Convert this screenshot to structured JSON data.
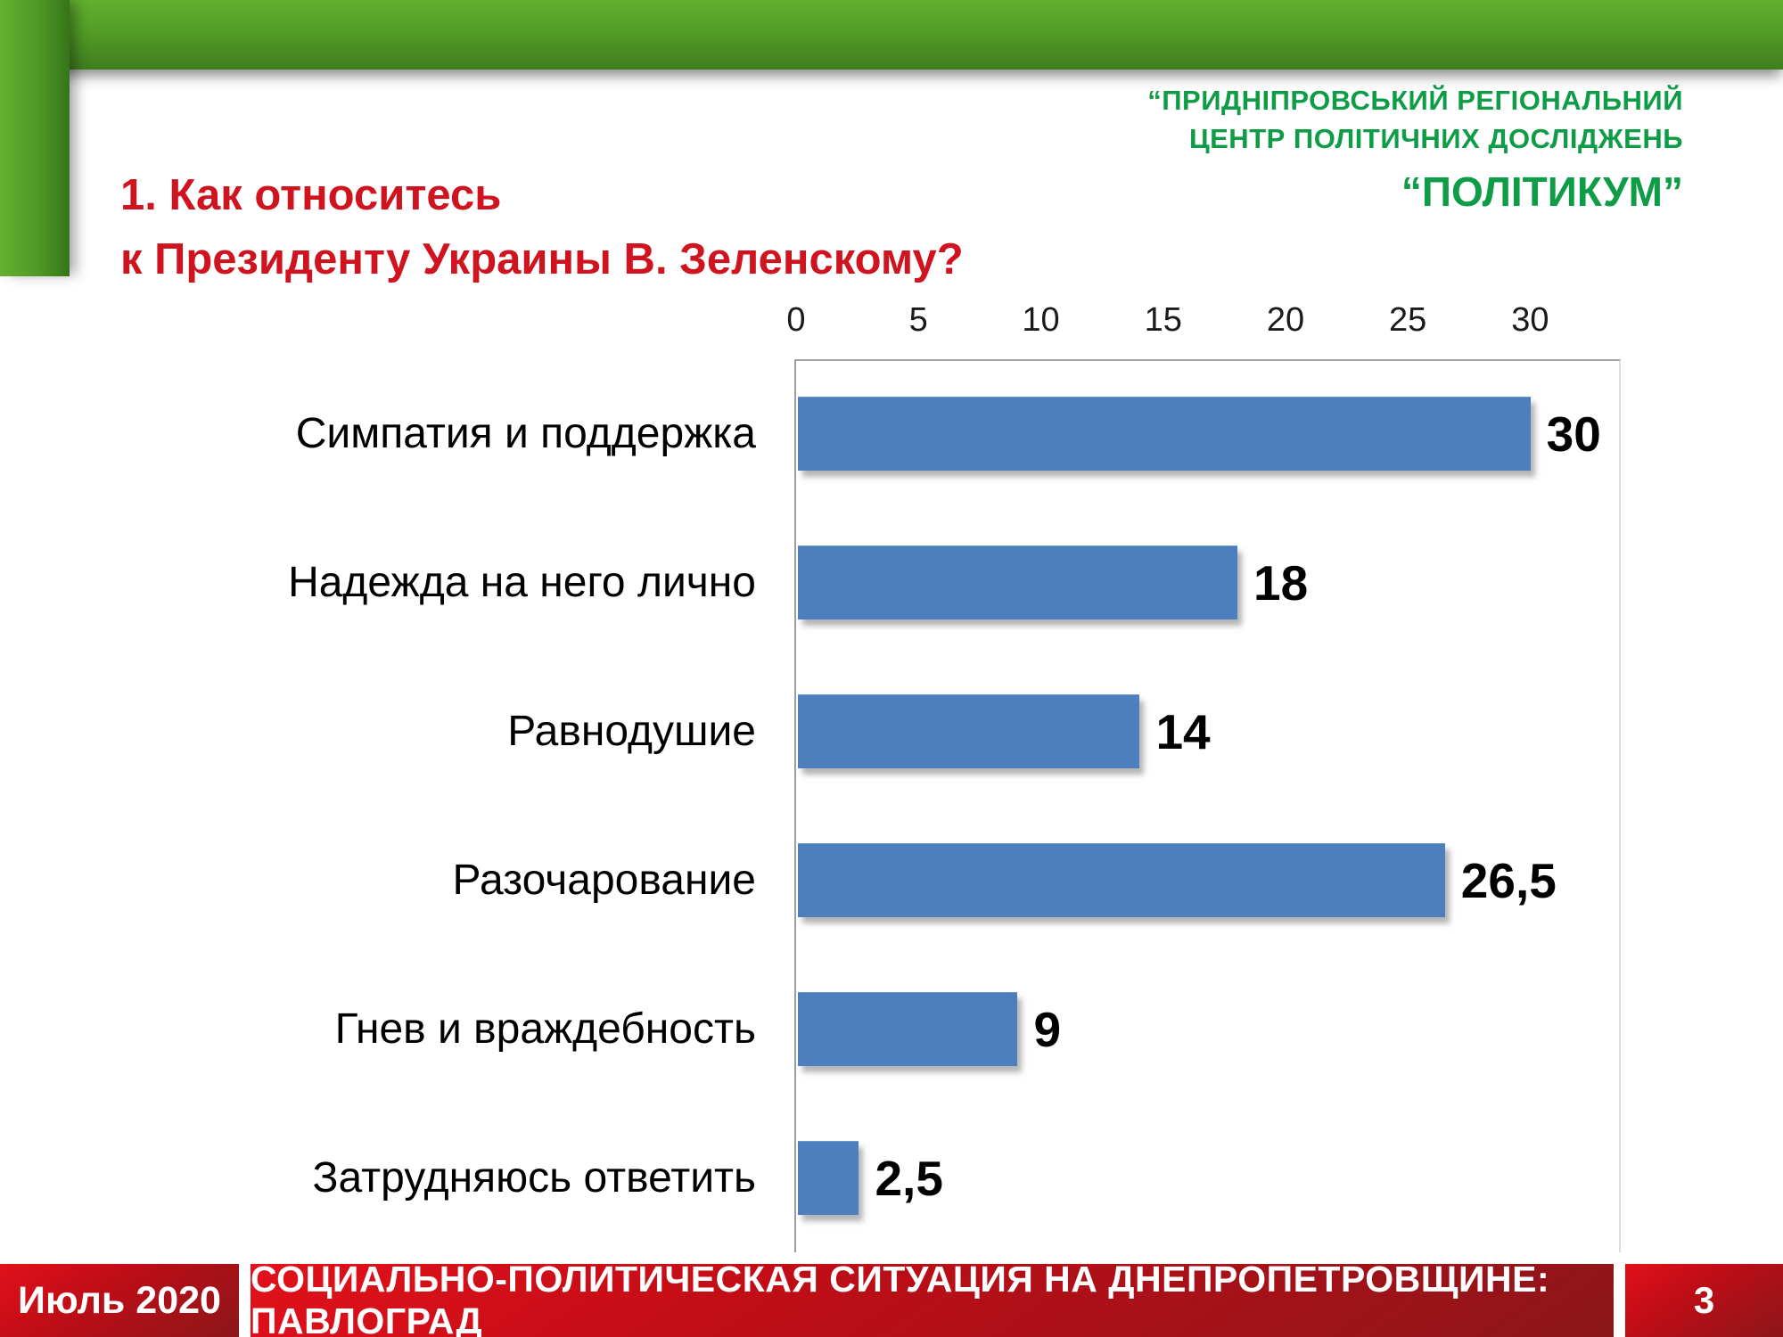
{
  "org": {
    "line1": "“ПРИДНІПРОВСЬКИЙ РЕГІОНАЛЬНИЙ",
    "line2": "ЦЕНТР ПОЛІТИЧНИХ ДОСЛІДЖЕНЬ",
    "line3": "“ПОЛІТИКУМ”"
  },
  "title": {
    "line1": "1. Как относитесь",
    "line2": "к Президенту Украины В. Зеленскому?"
  },
  "chart_data": {
    "type": "bar",
    "orientation": "horizontal",
    "categories": [
      "Симпатия и поддержка",
      "Надежда на него лично",
      "Равнодушие",
      "Разочарование",
      "Гнев и враждебность",
      "Затрудняюсь ответить"
    ],
    "values": [
      30,
      18,
      14,
      26.5,
      9,
      2.5
    ],
    "value_labels": [
      "30",
      "18",
      "14",
      "26,5",
      "9",
      "2,5"
    ],
    "x_ticks": [
      0,
      5,
      10,
      15,
      20,
      25,
      30
    ],
    "xlim": [
      0,
      33.7
    ],
    "bar_color": "#4d7fbe",
    "grid": false,
    "legend": false,
    "value_labels_position": "end-of-bar"
  },
  "footer": {
    "date": "Июль 2020",
    "title": "СОЦИАЛЬНО-ПОЛИТИЧЕСКАЯ СИТУАЦИЯ НА ДНЕПРОПЕТРОВЩИНЕ: ПАВЛОГРАД",
    "page": "3"
  },
  "colors": {
    "accent_green": "#0e9d46",
    "frame_green": "#55a028",
    "title_red": "#cf141f",
    "footer_red": "#c00d16",
    "bar_blue": "#4d7fbe",
    "axis_gray": "#9d9d9d"
  }
}
